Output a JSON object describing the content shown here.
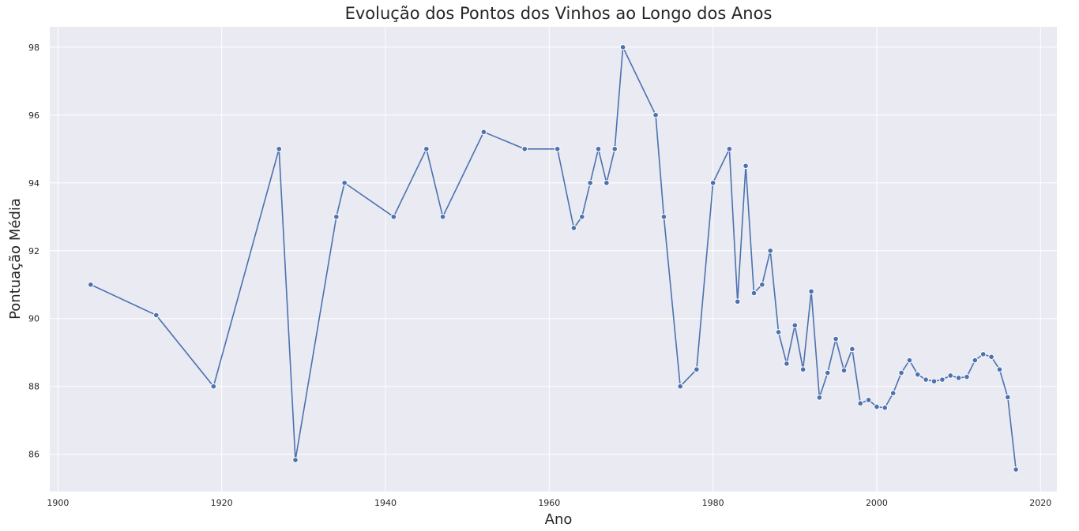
{
  "chart_data": {
    "type": "line",
    "title": "Evolução dos Pontos dos Vinhos ao Longo dos Anos",
    "xlabel": "Ano",
    "ylabel": "Pontuação Média",
    "xlim": [
      1899,
      2022
    ],
    "ylim": [
      84.9,
      98.6
    ],
    "xticks": [
      1900,
      1920,
      1940,
      1960,
      1980,
      2000,
      2020
    ],
    "yticks": [
      86,
      88,
      90,
      92,
      94,
      96,
      98
    ],
    "grid": true,
    "colors": {
      "background": "#eaeaf2",
      "line": "#4c72b0",
      "grid": "#ffffff"
    },
    "series": [
      {
        "x": [
          1904,
          1912,
          1919,
          1927,
          1929,
          1934,
          1935,
          1941,
          1945,
          1947,
          1952,
          1957,
          1961,
          1963,
          1964,
          1965,
          1966,
          1967,
          1968,
          1969,
          1973,
          1974,
          1976,
          1978,
          1980,
          1982,
          1983,
          1984,
          1985,
          1986,
          1987,
          1988,
          1989,
          1990,
          1991,
          1992,
          1993,
          1994,
          1995,
          1996,
          1997,
          1998,
          1999,
          2000,
          2001,
          2002,
          2003,
          2004,
          2005,
          2006,
          2007,
          2008,
          2009,
          2010,
          2011,
          2012,
          2013,
          2014,
          2015,
          2016,
          2017
        ],
        "y": [
          91.0,
          90.1,
          88.0,
          95.0,
          85.83,
          93.0,
          94.0,
          93.0,
          95.0,
          93.0,
          95.5,
          95.0,
          95.0,
          92.67,
          93.0,
          94.0,
          95.0,
          94.0,
          95.0,
          98.0,
          96.0,
          93.0,
          88.0,
          88.5,
          94.0,
          95.0,
          90.5,
          94.5,
          90.75,
          91.0,
          92.0,
          89.6,
          88.67,
          89.8,
          88.5,
          90.8,
          87.67,
          88.4,
          89.4,
          88.47,
          89.1,
          87.5,
          87.6,
          87.4,
          87.37,
          87.8,
          88.4,
          88.77,
          88.35,
          88.2,
          88.15,
          88.2,
          88.32,
          88.25,
          88.28,
          88.77,
          88.95,
          88.87,
          88.5,
          87.68,
          85.55
        ]
      }
    ]
  }
}
